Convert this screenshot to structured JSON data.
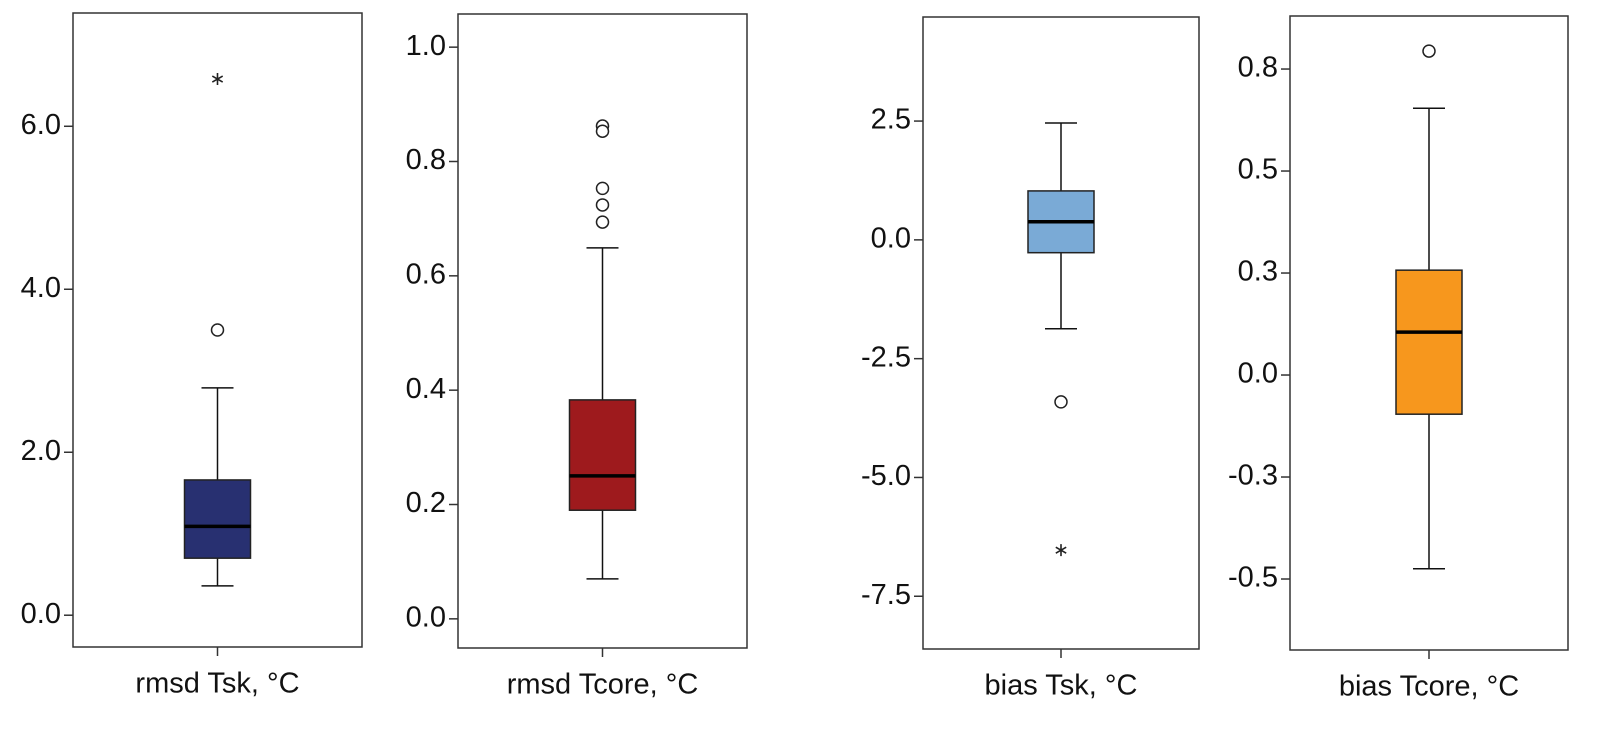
{
  "chart_data": [
    {
      "type": "box",
      "xlabel": "rmsd Tsk, °C",
      "color": "#283071",
      "whisker_low": 0.36,
      "q1": 0.7,
      "median": 1.09,
      "q3": 1.66,
      "whisker_high": 2.79,
      "outliers": [
        3.5
      ],
      "extremes": [
        6.58
      ],
      "ylim": [
        -0.39,
        7.39
      ],
      "yticks": [
        {
          "value": 0,
          "label": "0.0"
        },
        {
          "value": 2,
          "label": "2.0"
        },
        {
          "value": 4,
          "label": "4.0"
        },
        {
          "value": 6,
          "label": "6.0"
        }
      ]
    },
    {
      "type": "box",
      "xlabel": "rmsd Tcore, °C",
      "color": "#9e1a1d",
      "whisker_low": 0.07,
      "q1": 0.19,
      "median": 0.25,
      "q3": 0.383,
      "whisker_high": 0.649,
      "outliers": [
        0.862,
        0.853,
        0.753,
        0.724,
        0.694
      ],
      "extremes": [],
      "ylim": [
        -0.051,
        1.058
      ],
      "yticks": [
        {
          "value": 0,
          "label": "0.0"
        },
        0.2,
        0.4,
        0.6,
        0.8,
        {
          "value": 1,
          "label": "1.0"
        }
      ]
    },
    {
      "type": "box",
      "xlabel": "bias Tsk, °C",
      "color": "#7aaad6",
      "whisker_low": -1.87,
      "q1": -0.27,
      "median": 0.38,
      "q3": 1.03,
      "whisker_high": 2.46,
      "outliers": [
        -3.41
      ],
      "extremes": [
        -6.53
      ],
      "ylim": [
        -8.61,
        4.69
      ],
      "yticks": [
        -7.5,
        {
          "value": -5,
          "label": "-5.0"
        },
        -2.5,
        {
          "value": 0,
          "label": "0.0"
        },
        2.5
      ]
    },
    {
      "type": "box",
      "xlabel": "bias Tcore, °C",
      "color": "#f7971d",
      "whisker_low": -0.475,
      "q1": -0.096,
      "median": 0.105,
      "q3": 0.257,
      "whisker_high": 0.654,
      "outliers": [
        0.794
      ],
      "extremes": [],
      "ylim": [
        -0.674,
        0.88
      ],
      "yticks": [
        {
          "value": -0.5,
          "label": "-0.5"
        },
        {
          "value": -0.25,
          "label": "-0.3"
        },
        {
          "value": 0,
          "label": "0.0"
        },
        {
          "value": 0.25,
          "label": "0.3"
        },
        {
          "value": 0.5,
          "label": "0.5"
        },
        {
          "value": 0.75,
          "label": "0.8"
        }
      ]
    }
  ]
}
